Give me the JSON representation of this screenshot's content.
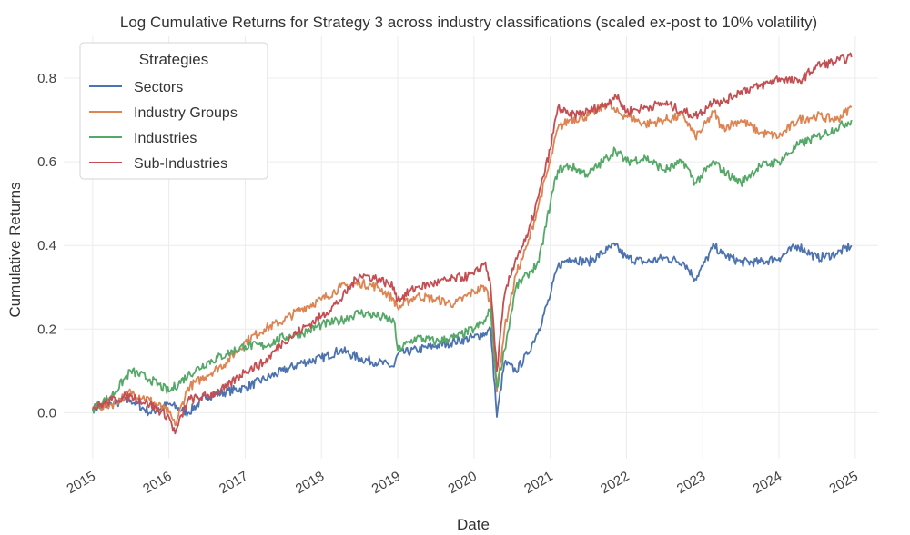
{
  "chart_data": {
    "type": "line",
    "title": "Log Cumulative Returns for Strategy 3 across industry classifications (scaled ex-post to 10% volatility)",
    "xlabel": "Date",
    "ylabel": "Cumulative Returns",
    "xlim": [
      2014.62,
      2025.3
    ],
    "ylim": [
      -0.11,
      0.9
    ],
    "x_ticks": [
      2015,
      2016,
      2017,
      2018,
      2019,
      2020,
      2021,
      2022,
      2023,
      2024,
      2025
    ],
    "x_tick_labels": [
      "2015",
      "2016",
      "2017",
      "2018",
      "2019",
      "2020",
      "2021",
      "2022",
      "2023",
      "2024",
      "2025"
    ],
    "y_ticks": [
      0.0,
      0.2,
      0.4,
      0.6,
      0.8
    ],
    "y_tick_labels": [
      "0.0",
      "0.2",
      "0.4",
      "0.6",
      "0.8"
    ],
    "grid": true,
    "legend": {
      "title": "Strategies",
      "position": "top-left"
    },
    "series": [
      {
        "name": "Sectors",
        "color": "#4c72b0",
        "x": [
          2015.0,
          2015.25,
          2015.5,
          2015.75,
          2016.0,
          2016.25,
          2016.5,
          2016.75,
          2017.0,
          2017.25,
          2017.5,
          2017.75,
          2018.0,
          2018.25,
          2018.5,
          2018.75,
          2018.95,
          2019.0,
          2019.25,
          2019.5,
          2019.75,
          2020.0,
          2020.15,
          2020.22,
          2020.3,
          2020.4,
          2020.55,
          2020.7,
          2020.85,
          2021.0,
          2021.1,
          2021.25,
          2021.5,
          2021.75,
          2021.85,
          2022.0,
          2022.25,
          2022.5,
          2022.75,
          2022.9,
          2023.0,
          2023.15,
          2023.25,
          2023.5,
          2023.75,
          2024.0,
          2024.25,
          2024.5,
          2024.75,
          2024.95
        ],
        "y": [
          0.01,
          0.02,
          0.03,
          0.0,
          0.02,
          0.0,
          0.04,
          0.05,
          0.06,
          0.08,
          0.1,
          0.12,
          0.13,
          0.15,
          0.13,
          0.12,
          0.11,
          0.14,
          0.15,
          0.16,
          0.17,
          0.18,
          0.19,
          0.2,
          -0.01,
          0.12,
          0.1,
          0.14,
          0.2,
          0.28,
          0.35,
          0.37,
          0.36,
          0.39,
          0.4,
          0.37,
          0.36,
          0.37,
          0.36,
          0.32,
          0.35,
          0.4,
          0.38,
          0.36,
          0.36,
          0.37,
          0.4,
          0.37,
          0.38,
          0.4
        ]
      },
      {
        "name": "Industry Groups",
        "color": "#dd8452",
        "x": [
          2015.0,
          2015.25,
          2015.5,
          2015.75,
          2016.0,
          2016.08,
          2016.25,
          2016.5,
          2016.75,
          2017.0,
          2017.25,
          2017.5,
          2017.75,
          2018.0,
          2018.25,
          2018.5,
          2018.75,
          2018.95,
          2019.0,
          2019.25,
          2019.5,
          2019.75,
          2020.0,
          2020.15,
          2020.22,
          2020.3,
          2020.4,
          2020.55,
          2020.7,
          2020.85,
          2021.0,
          2021.1,
          2021.25,
          2021.5,
          2021.75,
          2021.85,
          2022.0,
          2022.25,
          2022.5,
          2022.75,
          2022.9,
          2023.0,
          2023.15,
          2023.25,
          2023.5,
          2023.75,
          2024.0,
          2024.25,
          2024.5,
          2024.75,
          2024.95
        ],
        "y": [
          0.01,
          0.02,
          0.05,
          0.03,
          0.0,
          -0.03,
          0.06,
          0.09,
          0.12,
          0.17,
          0.2,
          0.22,
          0.25,
          0.27,
          0.3,
          0.31,
          0.3,
          0.27,
          0.25,
          0.28,
          0.27,
          0.26,
          0.29,
          0.3,
          0.26,
          0.05,
          0.2,
          0.33,
          0.4,
          0.5,
          0.6,
          0.68,
          0.7,
          0.71,
          0.74,
          0.72,
          0.71,
          0.69,
          0.7,
          0.71,
          0.66,
          0.68,
          0.72,
          0.68,
          0.7,
          0.67,
          0.66,
          0.7,
          0.71,
          0.7,
          0.73
        ]
      },
      {
        "name": "Industries",
        "color": "#55a868",
        "x": [
          2015.0,
          2015.25,
          2015.5,
          2015.75,
          2016.0,
          2016.25,
          2016.5,
          2016.75,
          2017.0,
          2017.25,
          2017.5,
          2017.75,
          2018.0,
          2018.25,
          2018.5,
          2018.75,
          2018.95,
          2019.0,
          2019.25,
          2019.5,
          2019.75,
          2020.0,
          2020.15,
          2020.22,
          2020.3,
          2020.4,
          2020.55,
          2020.7,
          2020.85,
          2021.0,
          2021.1,
          2021.25,
          2021.5,
          2021.75,
          2021.85,
          2022.0,
          2022.25,
          2022.5,
          2022.75,
          2022.9,
          2023.0,
          2023.15,
          2023.25,
          2023.5,
          2023.75,
          2024.0,
          2024.25,
          2024.5,
          2024.75,
          2024.95
        ],
        "y": [
          0.01,
          0.04,
          0.1,
          0.08,
          0.05,
          0.09,
          0.12,
          0.14,
          0.16,
          0.16,
          0.18,
          0.19,
          0.21,
          0.22,
          0.24,
          0.23,
          0.22,
          0.15,
          0.18,
          0.17,
          0.18,
          0.2,
          0.22,
          0.25,
          0.06,
          0.15,
          0.3,
          0.33,
          0.36,
          0.5,
          0.58,
          0.59,
          0.57,
          0.61,
          0.63,
          0.6,
          0.61,
          0.58,
          0.6,
          0.55,
          0.57,
          0.6,
          0.58,
          0.55,
          0.59,
          0.6,
          0.64,
          0.66,
          0.68,
          0.7
        ]
      },
      {
        "name": "Sub-Industries",
        "color": "#c44e52",
        "x": [
          2015.0,
          2015.25,
          2015.5,
          2015.75,
          2016.0,
          2016.08,
          2016.25,
          2016.5,
          2016.75,
          2017.0,
          2017.25,
          2017.5,
          2017.75,
          2018.0,
          2018.25,
          2018.5,
          2018.75,
          2018.95,
          2019.0,
          2019.25,
          2019.5,
          2019.75,
          2020.0,
          2020.15,
          2020.22,
          2020.3,
          2020.4,
          2020.55,
          2020.7,
          2020.85,
          2021.0,
          2021.1,
          2021.25,
          2021.5,
          2021.75,
          2021.85,
          2022.0,
          2022.25,
          2022.5,
          2022.75,
          2022.9,
          2023.0,
          2023.15,
          2023.25,
          2023.5,
          2023.75,
          2024.0,
          2024.25,
          2024.5,
          2024.75,
          2024.95
        ],
        "y": [
          0.01,
          0.03,
          0.04,
          0.02,
          -0.01,
          -0.05,
          0.03,
          0.04,
          0.06,
          0.1,
          0.12,
          0.17,
          0.2,
          0.23,
          0.27,
          0.33,
          0.32,
          0.3,
          0.27,
          0.3,
          0.31,
          0.32,
          0.33,
          0.36,
          0.3,
          0.1,
          0.28,
          0.37,
          0.42,
          0.52,
          0.63,
          0.73,
          0.71,
          0.72,
          0.74,
          0.76,
          0.72,
          0.73,
          0.74,
          0.72,
          0.71,
          0.72,
          0.75,
          0.74,
          0.77,
          0.78,
          0.8,
          0.79,
          0.83,
          0.84,
          0.85
        ]
      }
    ]
  }
}
